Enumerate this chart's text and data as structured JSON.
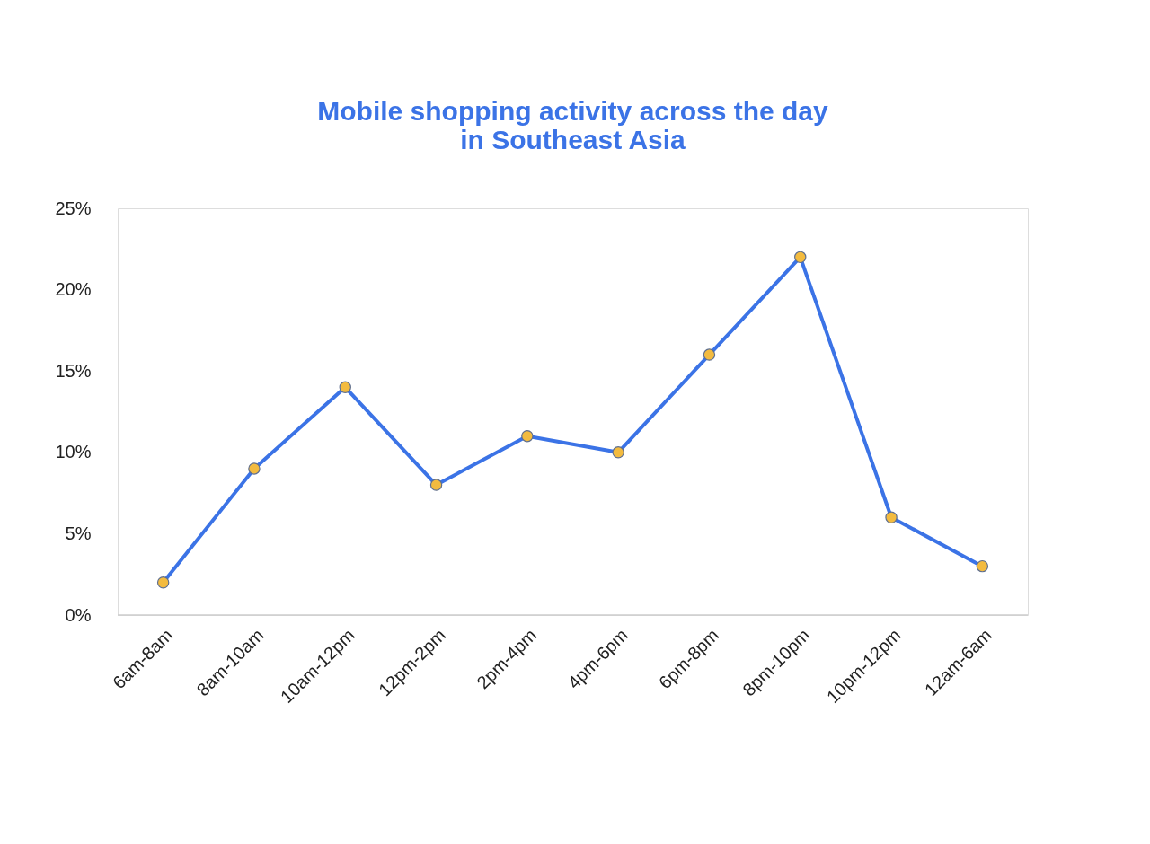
{
  "chart_data": {
    "type": "line",
    "title": [
      "Mobile shopping activity across the day",
      "in Southeast Asia"
    ],
    "categories": [
      "6am-8am",
      "8am-10am",
      "10am-12pm",
      "12pm-2pm",
      "2pm-4pm",
      "4pm-6pm",
      "6pm-8pm",
      "8pm-10pm",
      "10pm-12pm",
      "12am-6am"
    ],
    "series": [
      {
        "color": "#3b73e6",
        "values": [
          2,
          9,
          14,
          8,
          11,
          10,
          16,
          22,
          6,
          3
        ]
      }
    ],
    "ylim": [
      0,
      25
    ],
    "yticks": [
      {
        "value": 0,
        "label": "0%"
      },
      {
        "value": 5,
        "label": "5%"
      },
      {
        "value": 10,
        "label": "10%"
      },
      {
        "value": 15,
        "label": "15%"
      },
      {
        "value": 20,
        "label": "20%"
      },
      {
        "value": 25,
        "label": "25%"
      }
    ],
    "grid": false,
    "legend": false,
    "marker": "circle",
    "line_style": "solid"
  }
}
